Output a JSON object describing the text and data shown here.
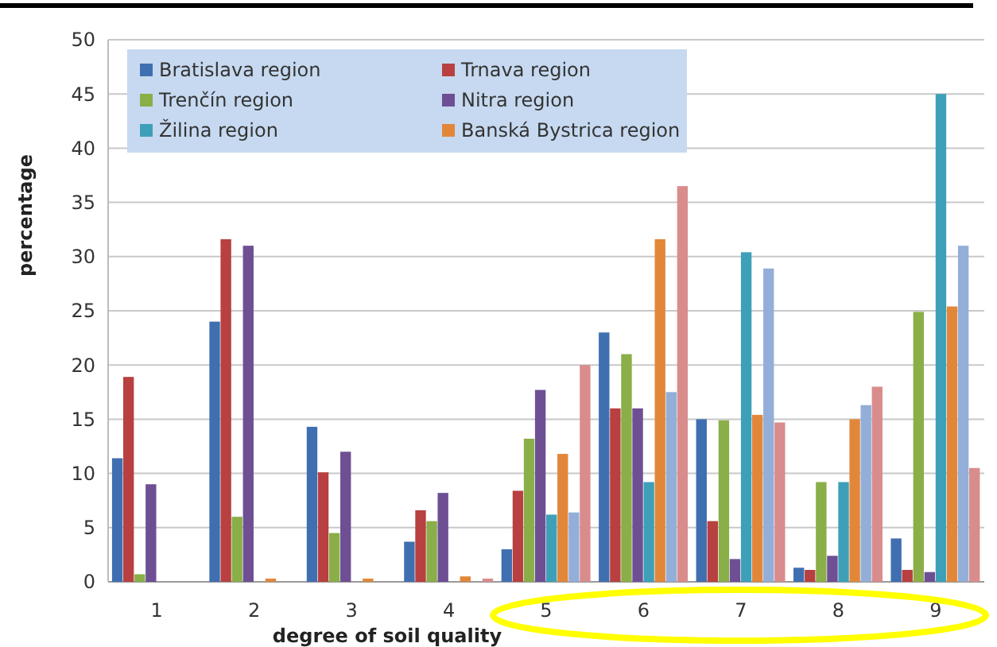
{
  "chart_data": {
    "type": "bar",
    "xlabel": "degree of soil quality",
    "ylabel": "percentage",
    "categories": [
      "1",
      "2",
      "3",
      "4",
      "5",
      "6",
      "7",
      "8",
      "9"
    ],
    "ylim": [
      0,
      50
    ],
    "yticks": [
      0,
      5,
      10,
      15,
      20,
      25,
      30,
      35,
      40,
      45,
      50
    ],
    "grid": "y",
    "legend": "top left",
    "series": [
      {
        "name": "Bratislava region",
        "color": "#3f6fb0",
        "values": [
          11.4,
          24,
          14.3,
          3.7,
          3,
          23,
          15,
          1.3,
          4
        ]
      },
      {
        "name": "Trnava region",
        "color": "#b84040",
        "values": [
          18.9,
          31.6,
          10.1,
          6.6,
          8.4,
          16,
          5.6,
          1.1,
          1.1
        ]
      },
      {
        "name": "Trenčín region",
        "color": "#8aae48",
        "values": [
          0.7,
          6,
          4.5,
          5.6,
          13.2,
          21,
          14.9,
          9.2,
          24.9
        ]
      },
      {
        "name": "Nitra region",
        "color": "#6e4f94",
        "values": [
          9,
          31,
          12,
          8.2,
          17.7,
          16,
          2.1,
          2.4,
          0.9
        ]
      },
      {
        "name": "Žilina region",
        "color": "#3ea0b8",
        "values": [
          0,
          0,
          0,
          0,
          6.2,
          9.2,
          30.4,
          9.2,
          45
        ]
      },
      {
        "name": "Banská Bystrica region",
        "color": "#e2873a",
        "values": [
          0,
          0.3,
          0.3,
          0.5,
          11.8,
          31.6,
          15.4,
          15,
          25.4
        ]
      },
      {
        "color": "#93aed8",
        "values": [
          0,
          0,
          0,
          0,
          6.4,
          17.5,
          28.9,
          16.3,
          31
        ]
      },
      {
        "color": "#d98c8c",
        "values": [
          0,
          0,
          0,
          0.3,
          20,
          36.5,
          14.7,
          18,
          10.5
        ]
      }
    ]
  }
}
